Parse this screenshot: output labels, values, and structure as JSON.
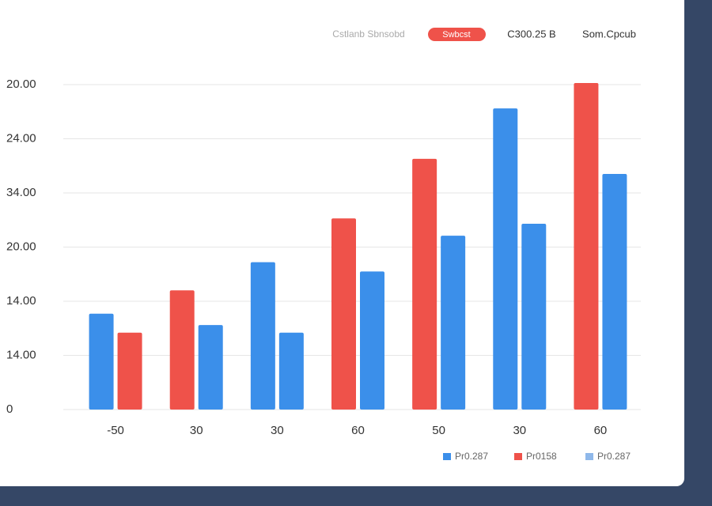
{
  "chart_data": {
    "type": "bar",
    "header": {
      "left": "Cstlanb Sbnsobd",
      "pill": "Swbcst",
      "middle": "C300.25 B",
      "right": "Som.Cpcub"
    },
    "categories": [
      "-50",
      "30",
      "30",
      "60",
      "50",
      "30",
      "60"
    ],
    "series": [
      {
        "values": [
          1.77,
          2.2,
          2.72,
          3.53,
          4.63,
          5.56,
          6.03
        ],
        "colors": [
          "#3b8fea",
          "#ef524a",
          "#3b8fea",
          "#ef524a",
          "#ef524a",
          "#3b8fea",
          "#ef524a"
        ]
      },
      {
        "values": [
          1.42,
          1.56,
          1.42,
          2.55,
          3.21,
          3.43,
          4.35
        ],
        "colors": [
          "#ef524a",
          "#3b8fea",
          "#3b8fea",
          "#3b8fea",
          "#3b8fea",
          "#3b8fea",
          "#3b8fea"
        ]
      }
    ],
    "legend": [
      {
        "name": "Pr0.287",
        "color": "#3b8fea"
      },
      {
        "name": "Pr0158",
        "color": "#ef524a"
      },
      {
        "name": "Pr0.287",
        "color": "#8fb8ea"
      }
    ],
    "ylim": [
      0,
      6
    ],
    "yticks": [
      0,
      {
        "value": 1,
        "label": "14.00"
      },
      {
        "value": 2,
        "label": "14.00"
      },
      {
        "value": 3,
        "label": "20.00"
      },
      {
        "value": 4,
        "label": "34.00"
      },
      {
        "value": 5,
        "label": "24.00"
      },
      {
        "value": 6,
        "label": "20.00"
      }
    ],
    "grid": true
  }
}
